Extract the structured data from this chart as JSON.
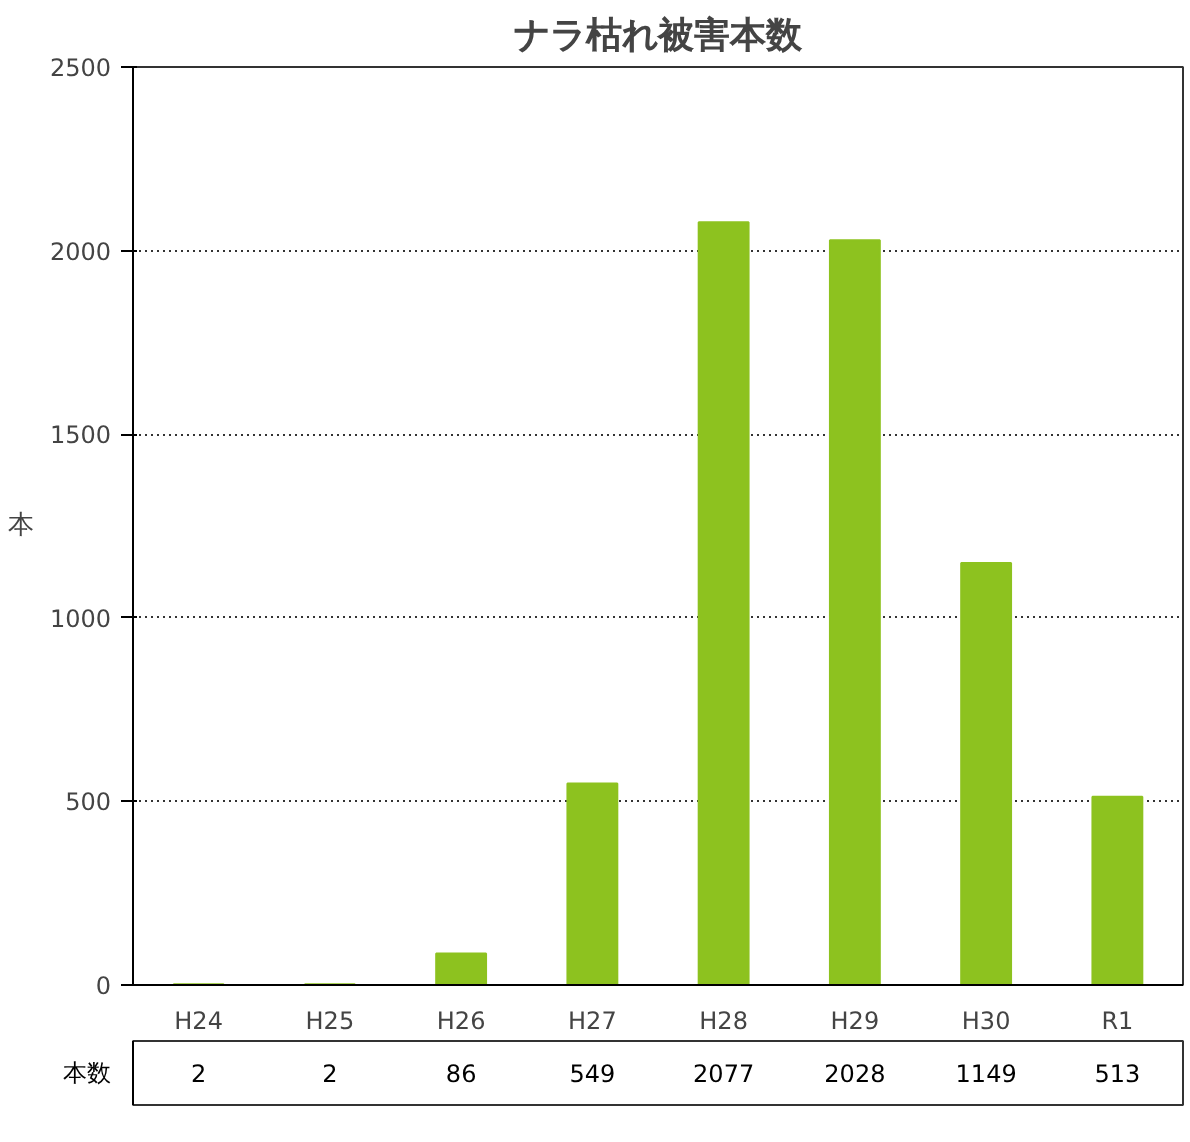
{
  "chart_data": {
    "type": "bar",
    "title": "ナラ枯れ被害本数",
    "ylabel": "本",
    "categories": [
      "H24",
      "H25",
      "H26",
      "H27",
      "H28",
      "H29",
      "H30",
      "R1"
    ],
    "values": [
      2,
      2,
      86,
      549,
      2077,
      2028,
      1149,
      513
    ],
    "color": "#8dc21f",
    "ylim": [
      0,
      2500
    ],
    "yticks": [
      0,
      500,
      1000,
      1500,
      2000,
      2500
    ],
    "grid": "y",
    "data_labels": true,
    "annotations": [
      "本数"
    ]
  }
}
